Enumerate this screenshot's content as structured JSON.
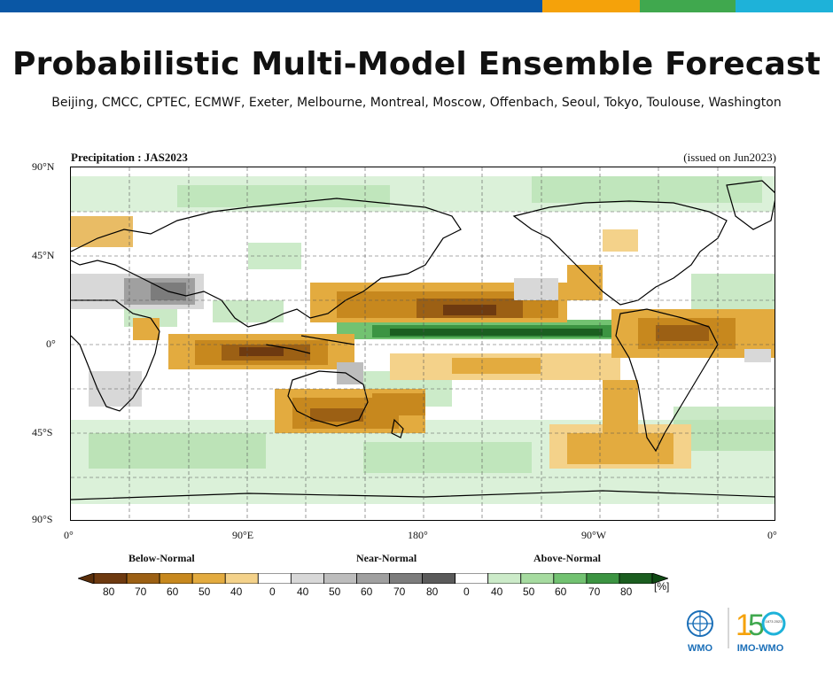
{
  "brand_colors": [
    "#0a57a5",
    "#f5a20a",
    "#40a84e",
    "#1eb2d9"
  ],
  "header": {
    "title": "Probabilistic Multi-Model Ensemble Forecast",
    "subtitle": "Beijing, CMCC, CPTEC, ECMWF, Exeter, Melbourne, Montreal, Moscow, Offenbach, Seoul, Tokyo, Toulouse, Washington"
  },
  "map": {
    "title": "Precipitation : JAS2023",
    "issued": "(issued on Jun2023)",
    "lat_labels": [
      "90°N",
      "45°N",
      "0°",
      "45°S",
      "90°S"
    ],
    "lon_labels": [
      "0°",
      "90°E",
      "180°",
      "90°W",
      "0°"
    ]
  },
  "legend": {
    "categories": [
      "Below-Normal",
      "Near-Normal",
      "Above-Normal"
    ],
    "below_labels": [
      "80",
      "70",
      "60",
      "50",
      "40"
    ],
    "near_labels": [
      "0",
      "40",
      "50",
      "60",
      "70",
      "80"
    ],
    "above_labels": [
      "0",
      "40",
      "50",
      "60",
      "70",
      "80"
    ],
    "unit": "[%]",
    "below_colors": [
      "#6e3a10",
      "#9c6014",
      "#c7881e",
      "#e3ab3f",
      "#f4d28a"
    ],
    "near_colors": [
      "#d8d8d8",
      "#bdbdbd",
      "#a0a0a0",
      "#7c7c7c",
      "#5a5a5a"
    ],
    "above_colors": [
      "#ccebc9",
      "#a6dba0",
      "#72c271",
      "#3c9442",
      "#1b5e20"
    ]
  },
  "logos": {
    "wmo": "WMO",
    "anniv_years": "1873 2023",
    "imo_wmo": "IMO-WMO"
  }
}
